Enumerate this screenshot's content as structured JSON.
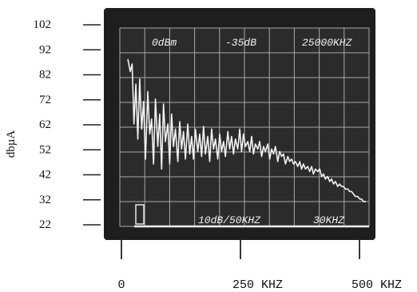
{
  "chart_data": {
    "type": "line",
    "title": "",
    "ylabel": "dbµA",
    "xlabel": "",
    "ylim": [
      22,
      102
    ],
    "xlim": [
      0,
      500
    ],
    "yticks": [
      "102",
      "92",
      "82",
      "72",
      "62",
      "52",
      "42",
      "32",
      "22"
    ],
    "xticks": [
      {
        "value": 0,
        "label": "0"
      },
      {
        "value": 250,
        "label": "250 KHZ"
      },
      {
        "value": 500,
        "label": "500 KHZ"
      }
    ],
    "screen_annotations": {
      "ref_level": "0dBm",
      "attenuation": "-35dB",
      "center_freq": "25000KHZ",
      "scan_width": "10dB/50KHZ",
      "resolution": "30KHZ"
    },
    "grid": true,
    "series": [
      {
        "color": "#f2f2f2",
        "x": [
          0,
          5,
          9,
          13,
          17,
          21,
          25,
          29,
          33,
          37,
          42,
          46,
          50,
          54,
          58,
          63,
          67,
          71,
          75,
          79,
          84,
          88,
          92,
          96,
          100,
          105,
          109,
          113,
          117,
          121,
          126,
          130,
          134,
          138,
          142,
          147,
          151,
          155,
          159,
          163,
          168,
          172,
          176,
          180,
          184,
          189,
          193,
          197,
          201,
          205,
          210,
          214,
          218,
          222,
          226,
          231,
          235,
          239,
          243,
          247,
          252,
          256,
          260,
          264,
          268,
          273,
          277,
          281,
          285,
          289,
          294,
          298,
          302,
          306,
          310,
          315,
          319,
          323,
          327,
          331,
          336,
          340,
          344,
          348,
          352,
          357,
          361,
          365,
          369,
          373,
          378,
          382,
          386,
          390,
          394,
          399,
          403,
          407,
          411,
          415,
          420,
          424,
          428,
          432,
          436,
          441,
          445,
          449,
          453,
          457,
          462,
          466,
          470,
          474,
          478,
          483,
          487,
          491,
          495,
          500
        ],
        "values": [
          88,
          83,
          86,
          62,
          78,
          56,
          80,
          60,
          71,
          48,
          75,
          58,
          64,
          46,
          72,
          53,
          66,
          44,
          70,
          55,
          62,
          46,
          66,
          53,
          60,
          47,
          63,
          52,
          59,
          48,
          62,
          50,
          57,
          48,
          60,
          51,
          58,
          49,
          61,
          50,
          57,
          47,
          60,
          52,
          56,
          48,
          58,
          51,
          55,
          49,
          59,
          52,
          57,
          50,
          56,
          52,
          60,
          51,
          58,
          53,
          55,
          51,
          57,
          50,
          54,
          52,
          55,
          49,
          53,
          51,
          54,
          48,
          52,
          50,
          53,
          47,
          51,
          49,
          50,
          46,
          49,
          47,
          48,
          46,
          47,
          45,
          47,
          44,
          46,
          44,
          45,
          43,
          45,
          42,
          44,
          43,
          44,
          41,
          42,
          40,
          41,
          39,
          40,
          38,
          39,
          37,
          38,
          37,
          37,
          36,
          36,
          35,
          35,
          34,
          33,
          33,
          32,
          32,
          31,
          31
        ]
      }
    ]
  }
}
